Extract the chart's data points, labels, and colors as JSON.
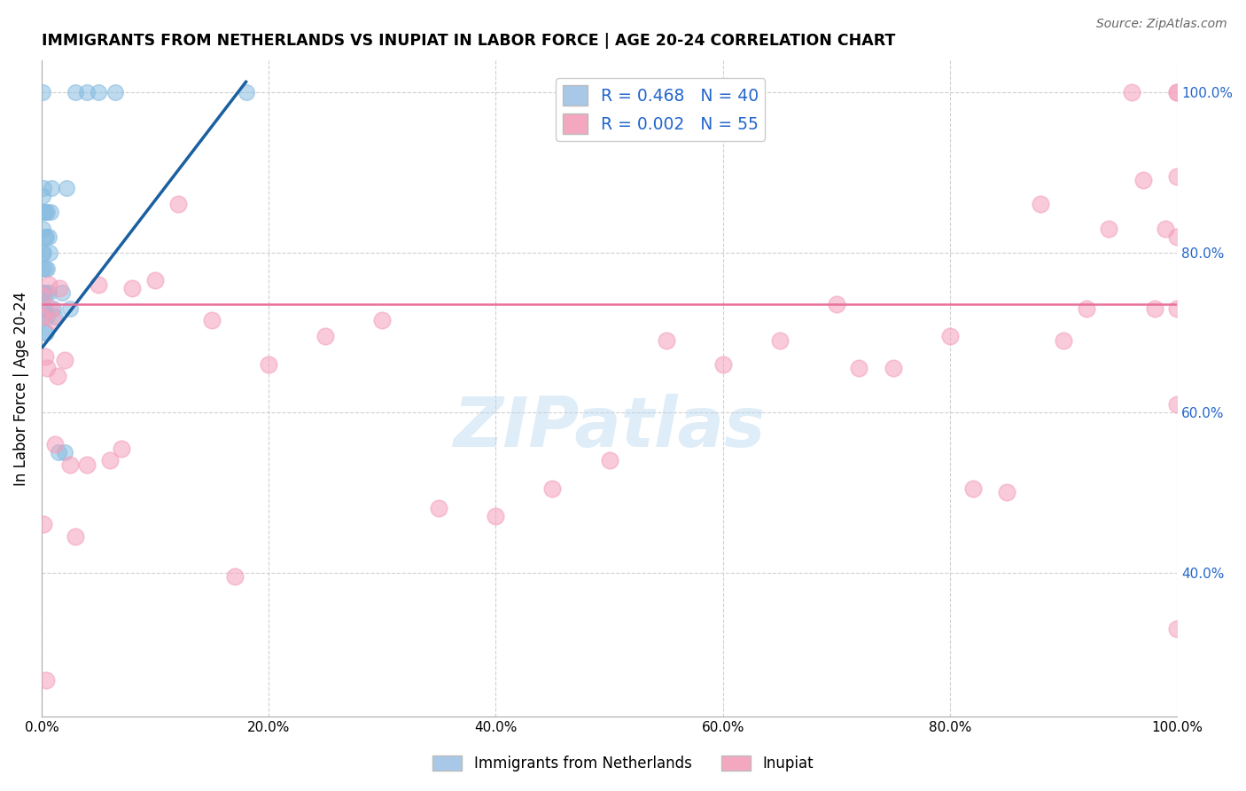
{
  "title": "IMMIGRANTS FROM NETHERLANDS VS INUPIAT IN LABOR FORCE | AGE 20-24 CORRELATION CHART",
  "source": "Source: ZipAtlas.com",
  "ylabel": "In Labor Force | Age 20-24",
  "watermark": "ZIPatlas",
  "legend_label1": "R = 0.468   N = 40",
  "legend_label2": "R = 0.002   N = 55",
  "legend_color1": "#a8c8e8",
  "legend_color2": "#f4a8c0",
  "blue_scatter_color": "#88bce0",
  "pink_scatter_color": "#f4a0bc",
  "trend_blue_color": "#1a5fa0",
  "trend_pink_color": "#e8709a",
  "grid_color": "#d0d0d0",
  "blue_x": [
    0.001,
    0.001,
    0.001,
    0.001,
    0.001,
    0.001,
    0.001,
    0.002,
    0.002,
    0.002,
    0.002,
    0.002,
    0.003,
    0.003,
    0.003,
    0.003,
    0.003,
    0.004,
    0.004,
    0.004,
    0.005,
    0.005,
    0.005,
    0.006,
    0.006,
    0.007,
    0.008,
    0.009,
    0.01,
    0.012,
    0.015,
    0.018,
    0.02,
    0.022,
    0.025,
    0.03,
    0.04,
    0.05,
    0.065,
    0.18
  ],
  "blue_y": [
    0.73,
    0.75,
    0.78,
    0.8,
    0.83,
    0.87,
    1.0,
    0.72,
    0.75,
    0.8,
    0.85,
    0.88,
    0.7,
    0.73,
    0.78,
    0.82,
    0.85,
    0.7,
    0.75,
    0.82,
    0.72,
    0.78,
    0.85,
    0.75,
    0.82,
    0.8,
    0.85,
    0.88,
    0.73,
    0.72,
    0.55,
    0.75,
    0.55,
    0.88,
    0.73,
    1.0,
    1.0,
    1.0,
    1.0,
    1.0
  ],
  "pink_x": [
    0.001,
    0.001,
    0.002,
    0.003,
    0.004,
    0.005,
    0.006,
    0.008,
    0.01,
    0.012,
    0.014,
    0.016,
    0.02,
    0.025,
    0.03,
    0.04,
    0.05,
    0.06,
    0.07,
    0.08,
    0.1,
    0.12,
    0.15,
    0.17,
    0.2,
    0.25,
    0.3,
    0.35,
    0.4,
    0.45,
    0.5,
    0.55,
    0.6,
    0.65,
    0.7,
    0.72,
    0.75,
    0.8,
    0.82,
    0.85,
    0.88,
    0.9,
    0.92,
    0.94,
    0.96,
    0.97,
    0.98,
    0.99,
    1.0,
    1.0,
    1.0,
    1.0,
    1.0,
    1.0,
    1.0
  ],
  "pink_y": [
    0.745,
    0.72,
    0.46,
    0.67,
    0.265,
    0.655,
    0.76,
    0.73,
    0.715,
    0.56,
    0.645,
    0.755,
    0.665,
    0.535,
    0.445,
    0.535,
    0.76,
    0.54,
    0.555,
    0.755,
    0.765,
    0.86,
    0.715,
    0.395,
    0.66,
    0.695,
    0.715,
    0.48,
    0.47,
    0.505,
    0.54,
    0.69,
    0.66,
    0.69,
    0.735,
    0.655,
    0.655,
    0.695,
    0.505,
    0.5,
    0.86,
    0.69,
    0.73,
    0.83,
    1.0,
    0.89,
    0.73,
    0.83,
    1.0,
    1.0,
    0.895,
    0.61,
    0.33,
    0.73,
    0.82
  ],
  "blue_trend_x": [
    0.001,
    0.18
  ],
  "blue_trend_y_intercept": 0.68,
  "blue_trend_slope": 1.85,
  "pink_trend_y": 0.735,
  "xlim": [
    0.0,
    1.0
  ],
  "ylim": [
    0.22,
    1.04
  ],
  "ytick_positions": [
    0.4,
    0.6,
    0.8,
    1.0
  ],
  "xtick_positions": [
    0.0,
    0.2,
    0.4,
    0.6,
    0.8,
    1.0
  ],
  "figsize": [
    14.06,
    8.92
  ],
  "dpi": 100
}
